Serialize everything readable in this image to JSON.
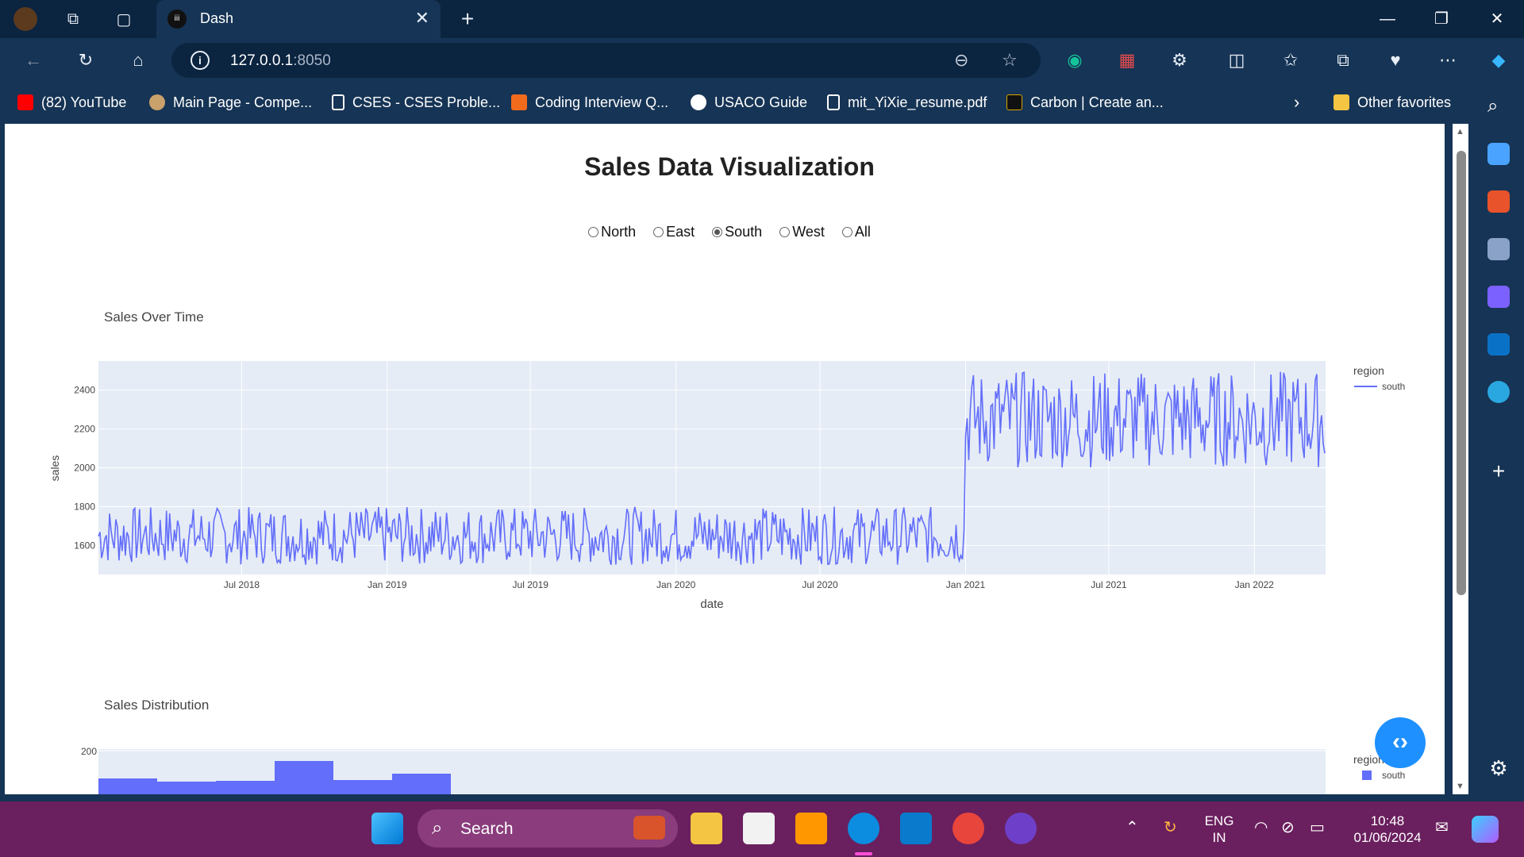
{
  "browser": {
    "tab_title": "Dash",
    "tab_favicon": "iii",
    "url_host": "127.0.0.1",
    "url_port": ":8050"
  },
  "favorites": [
    {
      "label": "(82) YouTube",
      "color": "#ff0000"
    },
    {
      "label": "Main Page - Compe...",
      "color": "#c9a26b"
    },
    {
      "label": "CSES - CSES Proble...",
      "color": "#ffffff"
    },
    {
      "label": "Coding Interview Q...",
      "color": "#f26b1d"
    },
    {
      "label": "USACO Guide",
      "color": "#ffffff"
    },
    {
      "label": "mit_YiXie_resume.pdf",
      "color": "#ffffff"
    },
    {
      "label": "Carbon | Create an...",
      "color": "#111111"
    }
  ],
  "other_favorites": "Other favorites",
  "page": {
    "title": "Sales Data Visualization",
    "radio_options": [
      {
        "label": "North",
        "selected": false
      },
      {
        "label": "East",
        "selected": false
      },
      {
        "label": "South",
        "selected": true
      },
      {
        "label": "West",
        "selected": false
      },
      {
        "label": "All",
        "selected": false
      }
    ]
  },
  "chart_data": [
    {
      "type": "line",
      "title": "Sales Over Time",
      "xlabel": "date",
      "ylabel": "sales",
      "x_ticks": [
        "Jul 2018",
        "Jan 2019",
        "Jul 2019",
        "Jan 2020",
        "Jul 2020",
        "Jan 2021",
        "Jul 2021",
        "Jan 2022"
      ],
      "y_ticks": [
        1600,
        1800,
        2000,
        2200,
        2400
      ],
      "ylim": [
        1450,
        2550
      ],
      "xlim": [
        "2018-01-01",
        "2022-04-01"
      ],
      "legend_title": "region",
      "legend_position": "right",
      "grid": true,
      "series": [
        {
          "name": "south",
          "color": "#636efa",
          "segments": [
            {
              "from": "2018-01-01",
              "to": "2020-12-31",
              "min": 1500,
              "max": 1800
            },
            {
              "from": "2021-01-01",
              "to": "2022-04-01",
              "min": 2000,
              "max": 2500
            }
          ]
        }
      ]
    },
    {
      "type": "bar",
      "title": "Sales Distribution",
      "y_ticks": [
        200
      ],
      "legend_title": "region",
      "legend_position": "right",
      "series": [
        {
          "name": "south",
          "color": "#636efa"
        }
      ]
    }
  ],
  "taskbar": {
    "search_label": "Search",
    "lang_top": "ENG",
    "lang_bottom": "IN",
    "time": "10:48",
    "date": "01/06/2024"
  }
}
